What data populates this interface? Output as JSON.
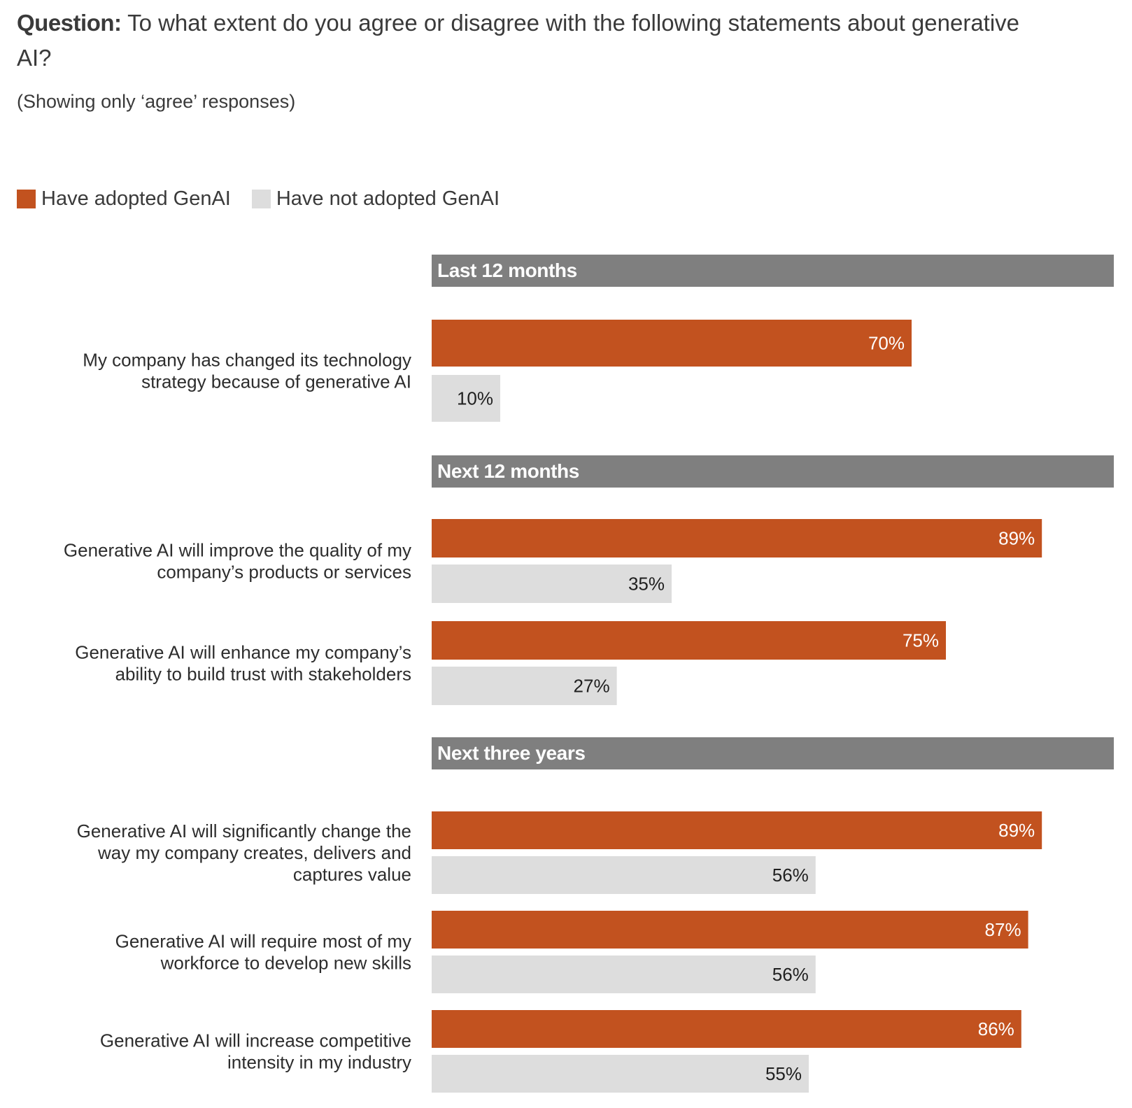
{
  "header": {
    "question_label": "Question:",
    "question_text": "To what extent do you agree or disagree with the following statements about generative AI?",
    "subtitle": "(Showing only ‘agree’ responses)"
  },
  "colors": {
    "adopted": "#c2521f",
    "not_adopted": "#dddddd",
    "section_bar": "#7f7f7f",
    "label_on_dark": "#ffffff",
    "label_on_light": "#1f1f1f"
  },
  "chart_data": {
    "type": "bar",
    "orientation": "horizontal",
    "xlim": [
      0,
      100
    ],
    "unit": "%",
    "legend_position": "top-left",
    "legend": [
      "Have adopted GenAI",
      "Have not adopted GenAI"
    ],
    "sections": [
      {
        "title": "Last 12 months",
        "items": [
          {
            "label": [
              "My company has changed its technology",
              "strategy because of generative AI"
            ],
            "adopted": 70,
            "not_adopted": 10
          }
        ]
      },
      {
        "title": "Next 12 months",
        "items": [
          {
            "label": [
              "Generative AI will improve the quality of my",
              "company’s products or services"
            ],
            "adopted": 89,
            "not_adopted": 35
          },
          {
            "label": [
              "Generative AI will enhance my company’s",
              "ability to build trust with stakeholders"
            ],
            "adopted": 75,
            "not_adopted": 27
          }
        ]
      },
      {
        "title": "Next three years",
        "items": [
          {
            "label": [
              "Generative AI will significantly change the",
              "way my company creates, delivers and",
              "captures value"
            ],
            "adopted": 89,
            "not_adopted": 56
          },
          {
            "label": [
              "Generative AI will require most of my",
              "workforce to develop new skills"
            ],
            "adopted": 87,
            "not_adopted": 56
          },
          {
            "label": [
              "Generative AI will increase competitive",
              "intensity in my industry"
            ],
            "adopted": 86,
            "not_adopted": 55
          }
        ]
      }
    ]
  }
}
